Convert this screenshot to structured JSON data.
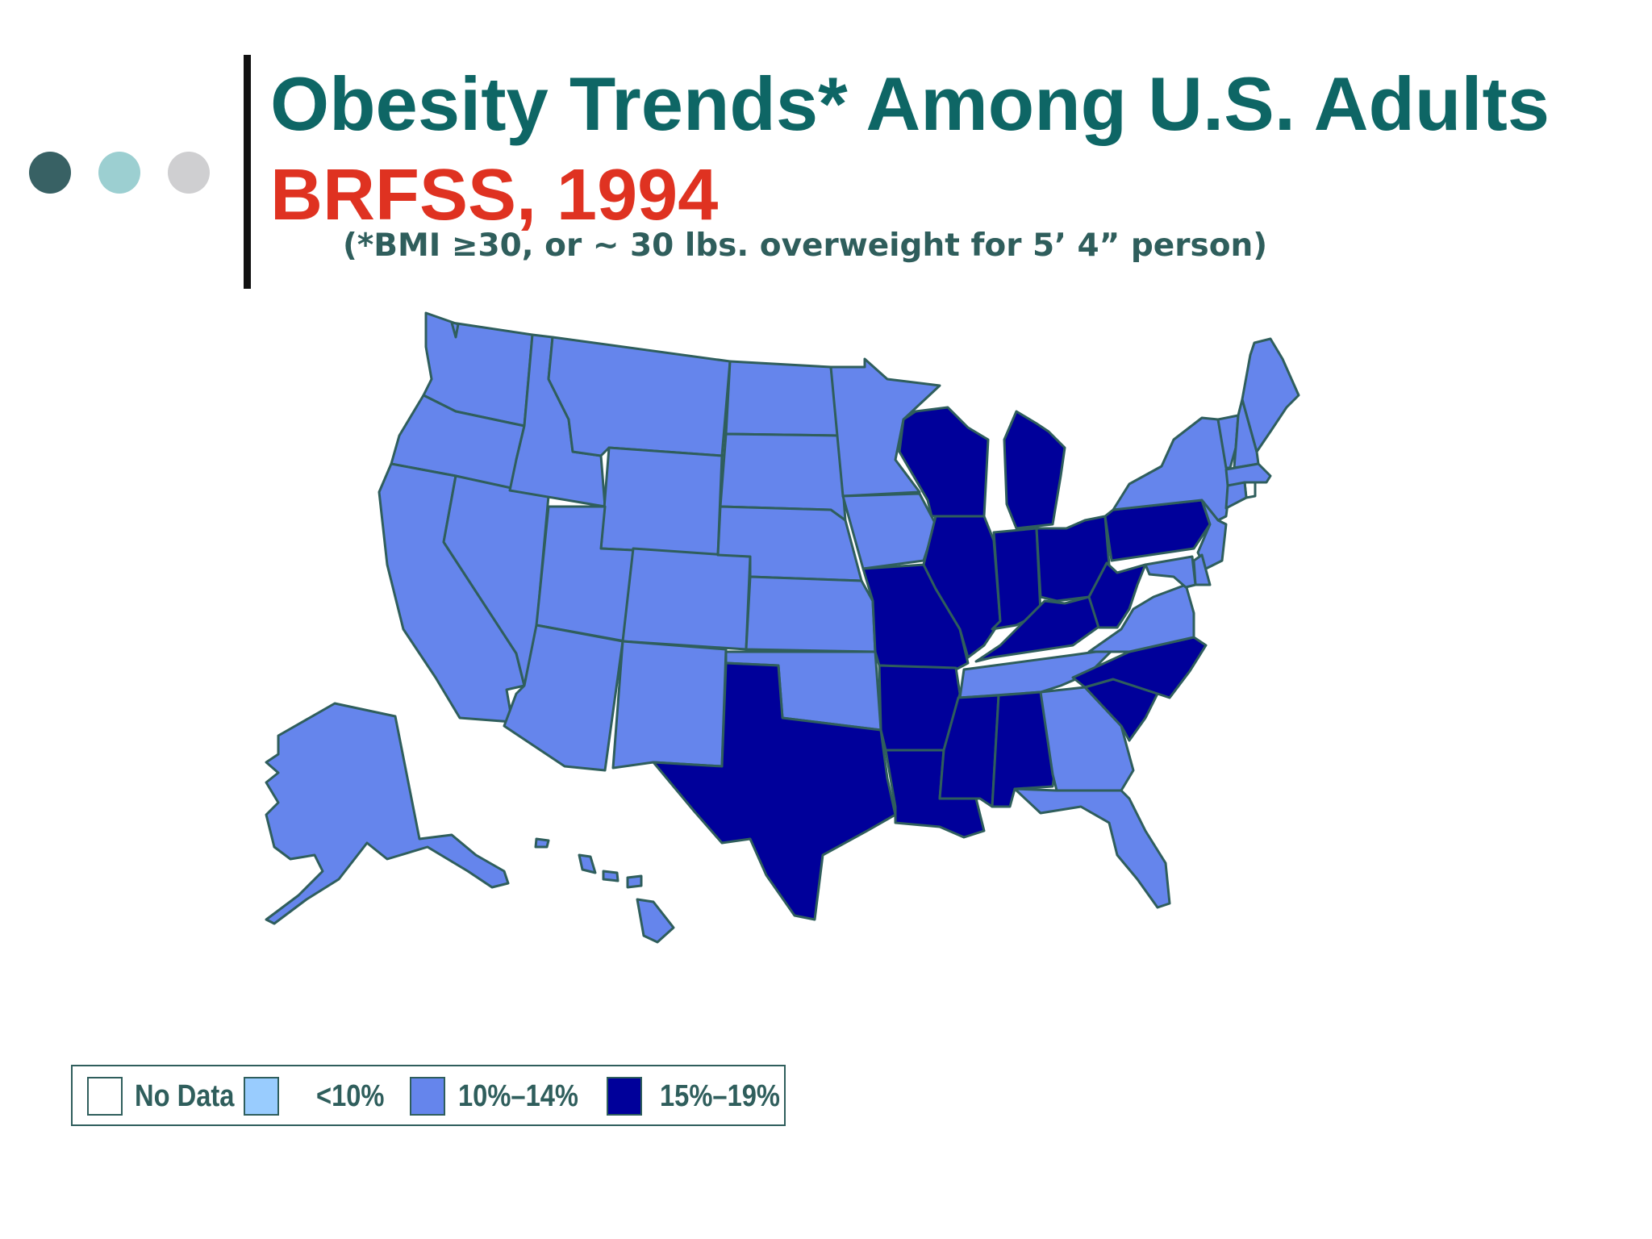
{
  "slide": {
    "title": "Obesity Trends* Among U.S. Adults",
    "subtitle": "BRFSS, 1994",
    "note": "(*BMI ≥30, or ~ 30 lbs. overweight for 5’ 4” person)"
  },
  "colors": {
    "title": "#0e6665",
    "subtitle": "#df3221",
    "note": "#2f5e5c",
    "border": "#2f5e5c",
    "dot1": "#386164",
    "dot2": "#9ccfd1",
    "dot3": "#cfcfd1",
    "bar": "#111111"
  },
  "legend": {
    "items": [
      {
        "label": "No Data",
        "color": "#ffffff"
      },
      {
        "label": "<10%",
        "color": "#99ccfe"
      },
      {
        "label": "10%–14%",
        "color": "#6585ec"
      },
      {
        "label": "15%–19%",
        "color": "#00009a"
      }
    ]
  },
  "map_data": {
    "type": "choropleth",
    "states": {
      "Washington": "10%–14%",
      "Oregon": "10%–14%",
      "California": "10%–14%",
      "Nevada": "10%–14%",
      "Idaho": "10%–14%",
      "Montana": "10%–14%",
      "Wyoming": "10%–14%",
      "Utah": "10%–14%",
      "Arizona": "10%–14%",
      "Colorado": "10%–14%",
      "New Mexico": "10%–14%",
      "North Dakota": "10%–14%",
      "South Dakota": "10%–14%",
      "Nebraska": "10%–14%",
      "Kansas": "10%–14%",
      "Oklahoma": "10%–14%",
      "Texas": "15%–19%",
      "Minnesota": "10%–14%",
      "Iowa": "10%–14%",
      "Missouri": "15%–19%",
      "Arkansas": "15%–19%",
      "Louisiana": "15%–19%",
      "Wisconsin": "15%–19%",
      "Illinois": "15%–19%",
      "Michigan": "15%–19%",
      "Indiana": "15%–19%",
      "Ohio": "15%–19%",
      "Kentucky": "15%–19%",
      "Tennessee": "10%–14%",
      "Mississippi": "15%–19%",
      "Alabama": "15%–19%",
      "Georgia": "10%–14%",
      "Florida": "10%–14%",
      "South Carolina": "15%–19%",
      "North Carolina": "15%–19%",
      "Virginia": "10%–14%",
      "West Virginia": "15%–19%",
      "Pennsylvania": "15%–19%",
      "New York": "10%–14%",
      "Vermont": "10%–14%",
      "New Hampshire": "10%–14%",
      "Maine": "10%–14%",
      "Massachusetts": "10%–14%",
      "Rhode Island": "No Data",
      "Connecticut": "10%–14%",
      "New Jersey": "10%–14%",
      "Delaware": "10%–14%",
      "Maryland": "10%–14%",
      "Alaska": "10%–14%",
      "Hawaii": "10%–14%"
    }
  }
}
